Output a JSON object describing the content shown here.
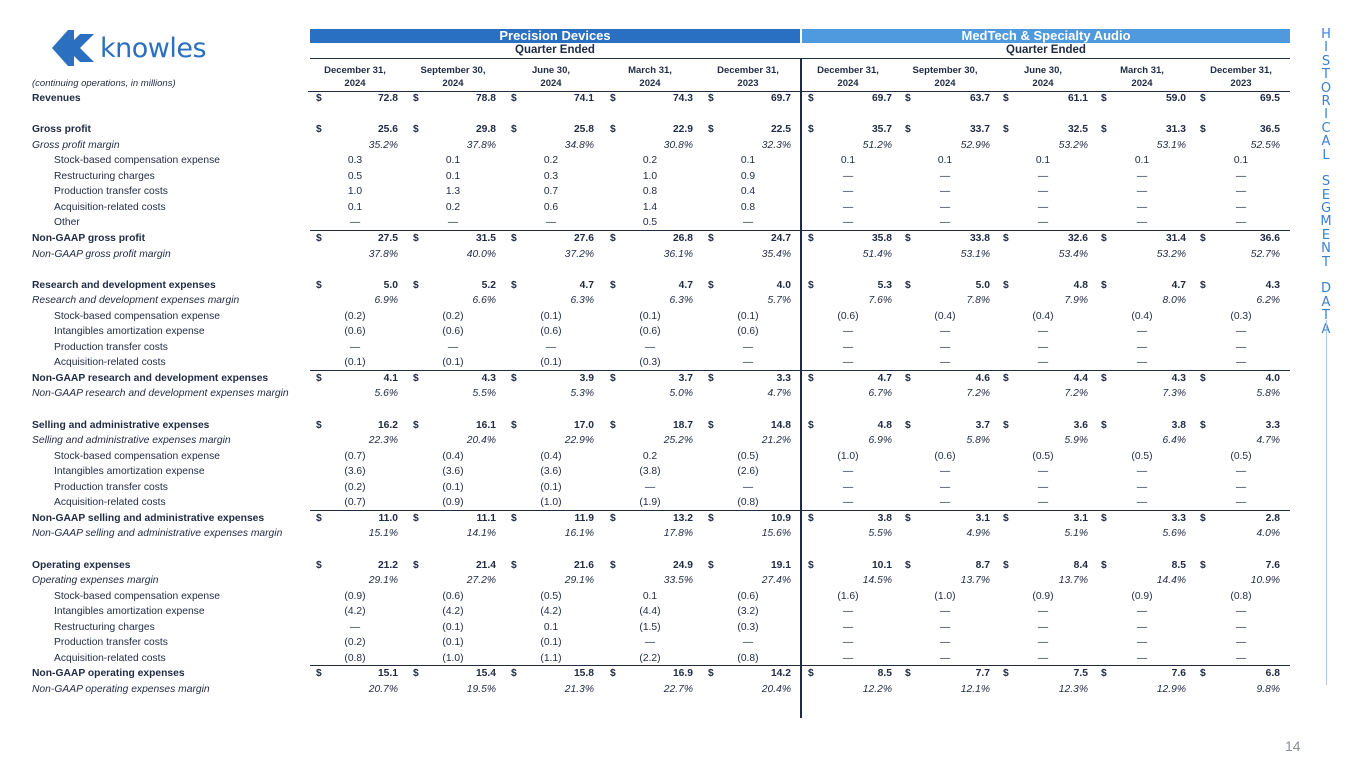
{
  "logo": {
    "text": "knowles",
    "color": "#2a6fc0"
  },
  "side_title": "HISTORICAL SEGMENT DATA",
  "page_number": "14",
  "unit_label": "(continuing operations, in millions)",
  "segments": [
    {
      "name": "Precision Devices",
      "period_label": "Quarter Ended",
      "color": "#2a70c2"
    },
    {
      "name": "MedTech & Specialty Audio",
      "period_label": "Quarter Ended",
      "color": "#4f9ade"
    }
  ],
  "columns": [
    [
      "December 31,",
      "2024"
    ],
    [
      "September 30,",
      "2024"
    ],
    [
      "June 30,",
      "2024"
    ],
    [
      "March 31,",
      "2024"
    ],
    [
      "December 31,",
      "2023"
    ],
    [
      "December 31,",
      "2024"
    ],
    [
      "September 30,",
      "2024"
    ],
    [
      "June 30,",
      "2024"
    ],
    [
      "March 31,",
      "2024"
    ],
    [
      "December 31,",
      "2023"
    ]
  ],
  "rows": [
    {
      "label": "Revenues",
      "style": "bold",
      "dollar": true,
      "values": [
        "72.8",
        "78.8",
        "74.1",
        "74.3",
        "69.7",
        "69.7",
        "63.7",
        "61.1",
        "59.0",
        "69.5"
      ]
    },
    {
      "label": "",
      "style": "gap"
    },
    {
      "label": "Gross profit",
      "style": "bold",
      "dollar": true,
      "values": [
        "25.6",
        "29.8",
        "25.8",
        "22.9",
        "22.5",
        "35.7",
        "33.7",
        "32.5",
        "31.3",
        "36.5"
      ]
    },
    {
      "label": "Gross profit margin",
      "style": "ital",
      "values": [
        "35.2%",
        "37.8%",
        "34.8%",
        "30.8%",
        "32.3%",
        "51.2%",
        "52.9%",
        "53.2%",
        "53.1%",
        "52.5%"
      ]
    },
    {
      "label": "Stock-based compensation expense",
      "style": "ind",
      "values": [
        "0.3",
        "0.1",
        "0.2",
        "0.2",
        "0.1",
        "0.1",
        "0.1",
        "0.1",
        "0.1",
        "0.1"
      ]
    },
    {
      "label": "Restructuring charges",
      "style": "ind",
      "values": [
        "0.5",
        "0.1",
        "0.3",
        "1.0",
        "0.9",
        "—",
        "—",
        "—",
        "—",
        "—"
      ]
    },
    {
      "label": "Production transfer costs",
      "style": "ind",
      "values": [
        "1.0",
        "1.3",
        "0.7",
        "0.8",
        "0.4",
        "—",
        "—",
        "—",
        "—",
        "—"
      ]
    },
    {
      "label": "Acquisition-related costs",
      "style": "ind",
      "values": [
        "0.1",
        "0.2",
        "0.6",
        "1.4",
        "0.8",
        "—",
        "—",
        "—",
        "—",
        "—"
      ]
    },
    {
      "label": "Other",
      "style": "ind",
      "rule": true,
      "values": [
        "—",
        "—",
        "—",
        "0.5",
        "—",
        "—",
        "—",
        "—",
        "—",
        "—"
      ]
    },
    {
      "label": "Non-GAAP gross profit",
      "style": "bold",
      "dollar": true,
      "values": [
        "27.5",
        "31.5",
        "27.6",
        "26.8",
        "24.7",
        "35.8",
        "33.8",
        "32.6",
        "31.4",
        "36.6"
      ]
    },
    {
      "label": "Non-GAAP gross profit margin",
      "style": "ital",
      "values": [
        "37.8%",
        "40.0%",
        "37.2%",
        "36.1%",
        "35.4%",
        "51.4%",
        "53.1%",
        "53.4%",
        "53.2%",
        "52.7%"
      ]
    },
    {
      "label": "",
      "style": "gap"
    },
    {
      "label": "Research and development expenses",
      "style": "bold",
      "dollar": true,
      "values": [
        "5.0",
        "5.2",
        "4.7",
        "4.7",
        "4.0",
        "5.3",
        "5.0",
        "4.8",
        "4.7",
        "4.3"
      ]
    },
    {
      "label": "Research and development expenses margin",
      "style": "ital",
      "values": [
        "6.9%",
        "6.6%",
        "6.3%",
        "6.3%",
        "5.7%",
        "7.6%",
        "7.8%",
        "7.9%",
        "8.0%",
        "6.2%"
      ]
    },
    {
      "label": "Stock-based compensation expense",
      "style": "ind",
      "values": [
        "(0.2)",
        "(0.2)",
        "(0.1)",
        "(0.1)",
        "(0.1)",
        "(0.6)",
        "(0.4)",
        "(0.4)",
        "(0.4)",
        "(0.3)"
      ]
    },
    {
      "label": "Intangibles amortization expense",
      "style": "ind",
      "values": [
        "(0.6)",
        "(0.6)",
        "(0.6)",
        "(0.6)",
        "(0.6)",
        "—",
        "—",
        "—",
        "—",
        "—"
      ]
    },
    {
      "label": "Production transfer costs",
      "style": "ind",
      "values": [
        "—",
        "—",
        "—",
        "—",
        "—",
        "—",
        "—",
        "—",
        "—",
        "—"
      ]
    },
    {
      "label": "Acquisition-related costs",
      "style": "ind",
      "rule": true,
      "values": [
        "(0.1)",
        "(0.1)",
        "(0.1)",
        "(0.3)",
        "—",
        "—",
        "—",
        "—",
        "—",
        "—"
      ]
    },
    {
      "label": "Non-GAAP research and development expenses",
      "style": "bold",
      "dollar": true,
      "values": [
        "4.1",
        "4.3",
        "3.9",
        "3.7",
        "3.3",
        "4.7",
        "4.6",
        "4.4",
        "4.3",
        "4.0"
      ]
    },
    {
      "label": "Non-GAAP research and development expenses margin",
      "style": "ital",
      "values": [
        "5.6%",
        "5.5%",
        "5.3%",
        "5.0%",
        "4.7%",
        "6.7%",
        "7.2%",
        "7.2%",
        "7.3%",
        "5.8%"
      ]
    },
    {
      "label": "",
      "style": "gap"
    },
    {
      "label": "Selling and administrative expenses",
      "style": "bold",
      "dollar": true,
      "values": [
        "16.2",
        "16.1",
        "17.0",
        "18.7",
        "14.8",
        "4.8",
        "3.7",
        "3.6",
        "3.8",
        "3.3"
      ]
    },
    {
      "label": "Selling and administrative expenses margin",
      "style": "ital",
      "values": [
        "22.3%",
        "20.4%",
        "22.9%",
        "25.2%",
        "21.2%",
        "6.9%",
        "5.8%",
        "5.9%",
        "6.4%",
        "4.7%"
      ]
    },
    {
      "label": "Stock-based compensation expense",
      "style": "ind",
      "values": [
        "(0.7)",
        "(0.4)",
        "(0.4)",
        "0.2",
        "(0.5)",
        "(1.0)",
        "(0.6)",
        "(0.5)",
        "(0.5)",
        "(0.5)"
      ]
    },
    {
      "label": "Intangibles amortization expense",
      "style": "ind",
      "values": [
        "(3.6)",
        "(3.6)",
        "(3.6)",
        "(3.8)",
        "(2.6)",
        "—",
        "—",
        "—",
        "—",
        "—"
      ]
    },
    {
      "label": "Production transfer costs",
      "style": "ind",
      "values": [
        "(0.2)",
        "(0.1)",
        "(0.1)",
        "—",
        "—",
        "—",
        "—",
        "—",
        "—",
        "—"
      ]
    },
    {
      "label": "Acquisition-related costs",
      "style": "ind",
      "rule": true,
      "values": [
        "(0.7)",
        "(0.9)",
        "(1.0)",
        "(1.9)",
        "(0.8)",
        "—",
        "—",
        "—",
        "—",
        "—"
      ]
    },
    {
      "label": "Non-GAAP selling and administrative expenses",
      "style": "bold",
      "dollar": true,
      "values": [
        "11.0",
        "11.1",
        "11.9",
        "13.2",
        "10.9",
        "3.8",
        "3.1",
        "3.1",
        "3.3",
        "2.8"
      ]
    },
    {
      "label": "Non-GAAP selling and administrative expenses margin",
      "style": "ital",
      "values": [
        "15.1%",
        "14.1%",
        "16.1%",
        "17.8%",
        "15.6%",
        "5.5%",
        "4.9%",
        "5.1%",
        "5.6%",
        "4.0%"
      ]
    },
    {
      "label": "",
      "style": "gap"
    },
    {
      "label": "Operating expenses",
      "style": "bold",
      "dollar": true,
      "values": [
        "21.2",
        "21.4",
        "21.6",
        "24.9",
        "19.1",
        "10.1",
        "8.7",
        "8.4",
        "8.5",
        "7.6"
      ]
    },
    {
      "label": "Operating expenses margin",
      "style": "ital",
      "values": [
        "29.1%",
        "27.2%",
        "29.1%",
        "33.5%",
        "27.4%",
        "14.5%",
        "13.7%",
        "13.7%",
        "14.4%",
        "10.9%"
      ]
    },
    {
      "label": "Stock-based compensation expense",
      "style": "ind",
      "values": [
        "(0.9)",
        "(0.6)",
        "(0.5)",
        "0.1",
        "(0.6)",
        "(1.6)",
        "(1.0)",
        "(0.9)",
        "(0.9)",
        "(0.8)"
      ]
    },
    {
      "label": "Intangibles amortization expense",
      "style": "ind",
      "values": [
        "(4.2)",
        "(4.2)",
        "(4.2)",
        "(4.4)",
        "(3.2)",
        "—",
        "—",
        "—",
        "—",
        "—"
      ]
    },
    {
      "label": "Restructuring charges",
      "style": "ind",
      "values": [
        "—",
        "(0.1)",
        "0.1",
        "(1.5)",
        "(0.3)",
        "—",
        "—",
        "—",
        "—",
        "—"
      ]
    },
    {
      "label": "Production transfer costs",
      "style": "ind",
      "values": [
        "(0.2)",
        "(0.1)",
        "(0.1)",
        "—",
        "—",
        "—",
        "—",
        "—",
        "—",
        "—"
      ]
    },
    {
      "label": "Acquisition-related costs",
      "style": "ind",
      "rule": true,
      "values": [
        "(0.8)",
        "(1.0)",
        "(1.1)",
        "(2.2)",
        "(0.8)",
        "—",
        "—",
        "—",
        "—",
        "—"
      ]
    },
    {
      "label": "Non-GAAP operating expenses",
      "style": "bold",
      "dollar": true,
      "values": [
        "15.1",
        "15.4",
        "15.8",
        "16.9",
        "14.2",
        "8.5",
        "7.7",
        "7.5",
        "7.6",
        "6.8"
      ]
    },
    {
      "label": "Non-GAAP operating expenses margin",
      "style": "ital",
      "values": [
        "20.7%",
        "19.5%",
        "21.3%",
        "22.7%",
        "20.4%",
        "12.2%",
        "12.1%",
        "12.3%",
        "12.9%",
        "9.8%"
      ]
    }
  ]
}
